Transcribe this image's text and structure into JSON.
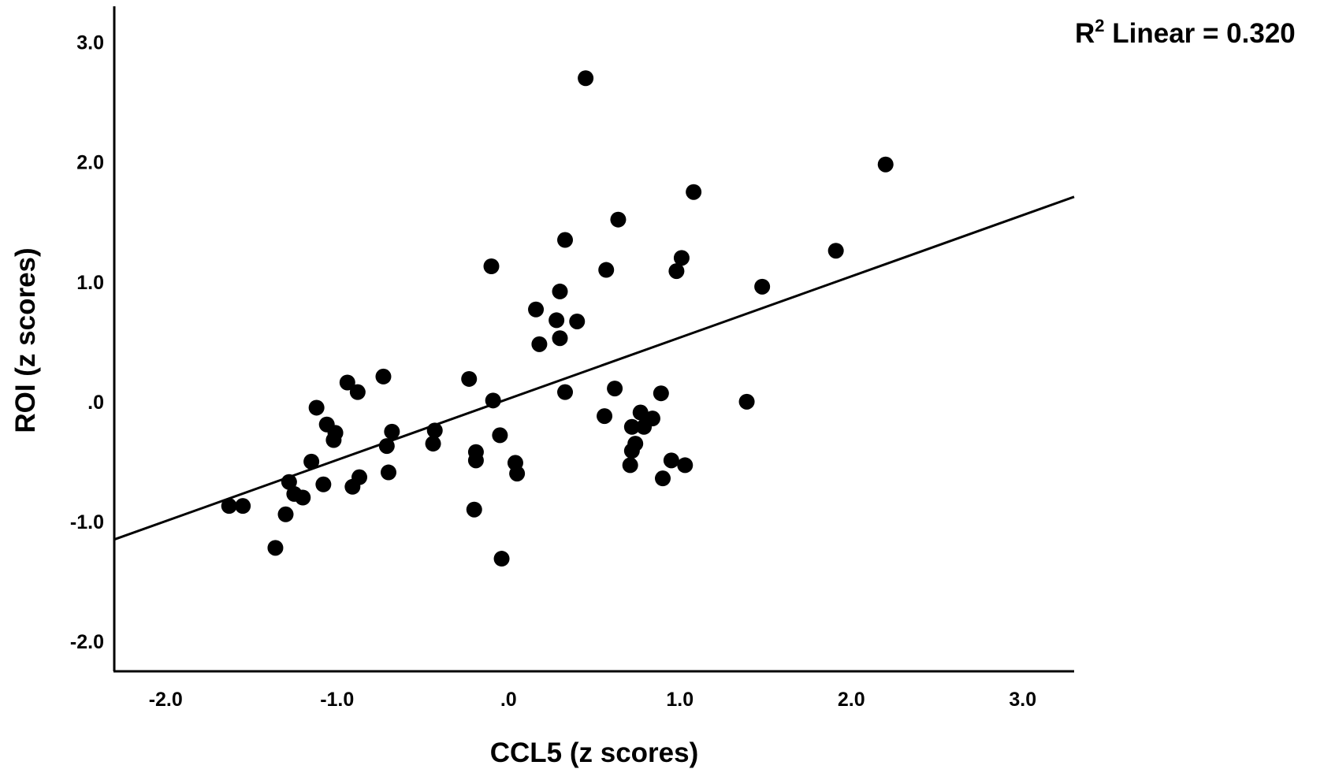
{
  "chart_data": {
    "type": "scatter",
    "xlabel": "CCL5 (z scores)",
    "ylabel": "ROI (z scores)",
    "xlim": [
      -2.3,
      3.3
    ],
    "ylim": [
      -2.25,
      3.3
    ],
    "x_ticks": [
      -2.0,
      -1.0,
      0.0,
      1.0,
      2.0,
      3.0
    ],
    "x_tick_labels": [
      "-2.0",
      "-1.0",
      ".0",
      "1.0",
      "2.0",
      "3.0"
    ],
    "y_ticks": [
      -2.0,
      -1.0,
      0.0,
      1.0,
      2.0,
      3.0
    ],
    "y_tick_labels": [
      "-2.0",
      "-1.0",
      ".0",
      "1.0",
      "2.0",
      "3.0"
    ],
    "grid": false,
    "annotation": {
      "prefix": "R",
      "superscript": "2",
      "suffix": " Linear = 0.320"
    },
    "fit_line": {
      "x": [
        -2.3,
        3.3
      ],
      "y": [
        -1.15,
        1.71
      ]
    },
    "marker_color": "#000000",
    "points": [
      {
        "x": 0.45,
        "y": 2.7
      },
      {
        "x": 2.2,
        "y": 1.98
      },
      {
        "x": 1.08,
        "y": 1.75
      },
      {
        "x": 0.64,
        "y": 1.52
      },
      {
        "x": 0.33,
        "y": 1.35
      },
      {
        "x": 1.91,
        "y": 1.26
      },
      {
        "x": 1.01,
        "y": 1.2
      },
      {
        "x": -0.1,
        "y": 1.13
      },
      {
        "x": 0.57,
        "y": 1.1
      },
      {
        "x": 0.98,
        "y": 1.09
      },
      {
        "x": 1.48,
        "y": 0.96
      },
      {
        "x": 0.3,
        "y": 0.92
      },
      {
        "x": 0.16,
        "y": 0.77
      },
      {
        "x": 0.28,
        "y": 0.68
      },
      {
        "x": 0.4,
        "y": 0.67
      },
      {
        "x": 0.3,
        "y": 0.53
      },
      {
        "x": 0.18,
        "y": 0.48
      },
      {
        "x": -0.73,
        "y": 0.21
      },
      {
        "x": -0.23,
        "y": 0.19
      },
      {
        "x": -0.94,
        "y": 0.16
      },
      {
        "x": 0.62,
        "y": 0.11
      },
      {
        "x": -0.88,
        "y": 0.08
      },
      {
        "x": 0.33,
        "y": 0.08
      },
      {
        "x": 0.89,
        "y": 0.07
      },
      {
        "x": -0.09,
        "y": 0.01
      },
      {
        "x": 1.39,
        "y": 0.0
      },
      {
        "x": -1.12,
        "y": -0.05
      },
      {
        "x": 0.77,
        "y": -0.09
      },
      {
        "x": 0.56,
        "y": -0.12
      },
      {
        "x": 0.84,
        "y": -0.14
      },
      {
        "x": -1.06,
        "y": -0.19
      },
      {
        "x": 0.72,
        "y": -0.21
      },
      {
        "x": 0.79,
        "y": -0.21
      },
      {
        "x": -0.43,
        "y": -0.24
      },
      {
        "x": -0.68,
        "y": -0.25
      },
      {
        "x": -1.01,
        "y": -0.26
      },
      {
        "x": -0.05,
        "y": -0.28
      },
      {
        "x": -1.02,
        "y": -0.32
      },
      {
        "x": -0.71,
        "y": -0.37
      },
      {
        "x": -0.44,
        "y": -0.35
      },
      {
        "x": 0.74,
        "y": -0.35
      },
      {
        "x": 0.72,
        "y": -0.41
      },
      {
        "x": -0.19,
        "y": -0.42
      },
      {
        "x": -1.15,
        "y": -0.5
      },
      {
        "x": -0.19,
        "y": -0.49
      },
      {
        "x": 0.95,
        "y": -0.49
      },
      {
        "x": 0.04,
        "y": -0.51
      },
      {
        "x": 0.71,
        "y": -0.53
      },
      {
        "x": 1.03,
        "y": -0.53
      },
      {
        "x": -0.7,
        "y": -0.59
      },
      {
        "x": 0.05,
        "y": -0.6
      },
      {
        "x": -0.87,
        "y": -0.63
      },
      {
        "x": 0.9,
        "y": -0.64
      },
      {
        "x": -1.28,
        "y": -0.67
      },
      {
        "x": -1.08,
        "y": -0.69
      },
      {
        "x": -0.91,
        "y": -0.71
      },
      {
        "x": -1.25,
        "y": -0.77
      },
      {
        "x": -1.2,
        "y": -0.8
      },
      {
        "x": -1.63,
        "y": -0.87
      },
      {
        "x": -1.55,
        "y": -0.87
      },
      {
        "x": -0.2,
        "y": -0.9
      },
      {
        "x": -1.3,
        "y": -0.94
      },
      {
        "x": -1.36,
        "y": -1.22
      },
      {
        "x": -0.04,
        "y": -1.31
      }
    ]
  }
}
